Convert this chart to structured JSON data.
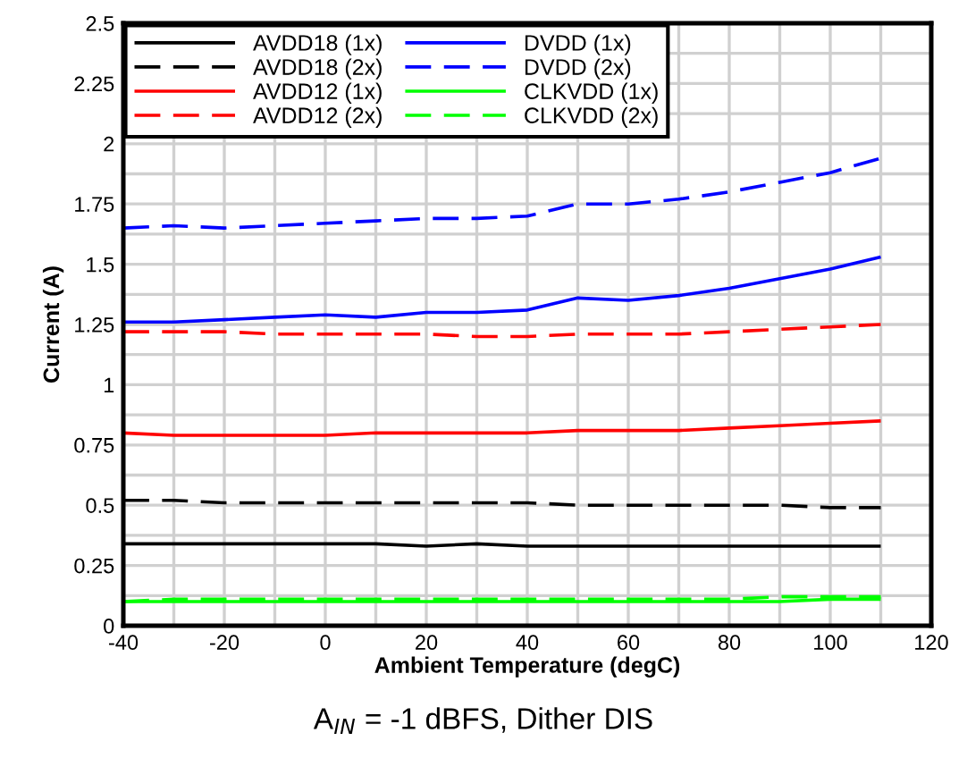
{
  "chart_data": {
    "type": "line",
    "xlabel": "Ambient Temperature (degC)",
    "ylabel": "Current (A)",
    "annotations": [
      "A$_{IN}$ = -1 dBFS, Dither DIS"
    ],
    "x": [
      -40,
      -30,
      -20,
      -10,
      0,
      10,
      20,
      30,
      40,
      50,
      60,
      70,
      80,
      90,
      100,
      110
    ],
    "series": [
      {
        "name": "AVDD18 (1x)",
        "color": "#000000",
        "line_style": "solid",
        "values": [
          0.34,
          0.34,
          0.34,
          0.34,
          0.34,
          0.34,
          0.33,
          0.34,
          0.33,
          0.33,
          0.33,
          0.33,
          0.33,
          0.33,
          0.33,
          0.33
        ]
      },
      {
        "name": "AVDD18 (2x)",
        "color": "#000000",
        "line_style": "dashed",
        "values": [
          0.52,
          0.52,
          0.51,
          0.51,
          0.51,
          0.51,
          0.51,
          0.51,
          0.51,
          0.5,
          0.5,
          0.5,
          0.5,
          0.5,
          0.49,
          0.49
        ]
      },
      {
        "name": "AVDD12 (1x)",
        "color": "#ff0000",
        "line_style": "solid",
        "values": [
          0.8,
          0.79,
          0.79,
          0.79,
          0.79,
          0.8,
          0.8,
          0.8,
          0.8,
          0.81,
          0.81,
          0.81,
          0.82,
          0.83,
          0.84,
          0.85
        ]
      },
      {
        "name": "AVDD12 (2x)",
        "color": "#ff0000",
        "line_style": "dashed",
        "values": [
          1.22,
          1.22,
          1.22,
          1.21,
          1.21,
          1.21,
          1.21,
          1.2,
          1.2,
          1.21,
          1.21,
          1.21,
          1.22,
          1.23,
          1.24,
          1.25
        ]
      },
      {
        "name": "DVDD (1x)",
        "color": "#0000ff",
        "line_style": "solid",
        "values": [
          1.26,
          1.26,
          1.27,
          1.28,
          1.29,
          1.28,
          1.3,
          1.3,
          1.31,
          1.36,
          1.35,
          1.37,
          1.4,
          1.44,
          1.48,
          1.53
        ]
      },
      {
        "name": "DVDD (2x)",
        "color": "#0000ff",
        "line_style": "dashed",
        "values": [
          1.65,
          1.66,
          1.65,
          1.66,
          1.67,
          1.68,
          1.69,
          1.69,
          1.7,
          1.75,
          1.75,
          1.77,
          1.8,
          1.84,
          1.88,
          1.94
        ]
      },
      {
        "name": "CLKVDD (1x)",
        "color": "#00ff00",
        "line_style": "solid",
        "values": [
          0.1,
          0.1,
          0.1,
          0.1,
          0.1,
          0.1,
          0.1,
          0.1,
          0.1,
          0.1,
          0.1,
          0.1,
          0.1,
          0.1,
          0.11,
          0.11
        ]
      },
      {
        "name": "CLKVDD (2x)",
        "color": "#00ff00",
        "line_style": "dashed",
        "values": [
          0.1,
          0.11,
          0.11,
          0.11,
          0.11,
          0.11,
          0.11,
          0.11,
          0.11,
          0.11,
          0.11,
          0.11,
          0.11,
          0.12,
          0.12,
          0.12
        ]
      }
    ],
    "xlim": [
      -40,
      120
    ],
    "xticks": [
      -40,
      {
        "value": -30,
        "label": null
      },
      -20,
      {
        "value": -10,
        "label": null
      },
      0,
      {
        "value": 10,
        "label": null
      },
      20,
      {
        "value": 30,
        "label": null
      },
      40,
      {
        "value": 50,
        "label": null
      },
      60,
      {
        "value": 70,
        "label": null
      },
      80,
      {
        "value": 90,
        "label": null
      },
      100,
      {
        "value": 110,
        "label": null
      },
      120
    ],
    "ylim": [
      0,
      2.5
    ],
    "yticks": [
      0,
      {
        "value": 0.125,
        "label": null
      },
      0.25,
      {
        "value": 0.375,
        "label": null
      },
      0.5,
      {
        "value": 0.625,
        "label": null
      },
      0.75,
      {
        "value": 0.875,
        "label": null
      },
      1,
      {
        "value": 1.125,
        "label": null
      },
      1.25,
      {
        "value": 1.375,
        "label": null
      },
      1.5,
      {
        "value": 1.625,
        "label": null
      },
      1.75,
      {
        "value": 1.875,
        "label": null
      },
      2,
      {
        "value": 2.125,
        "label": null
      },
      2.25,
      {
        "value": 2.375,
        "label": null
      },
      2.5
    ],
    "grid": true,
    "legend": "top left",
    "marker": "none"
  }
}
